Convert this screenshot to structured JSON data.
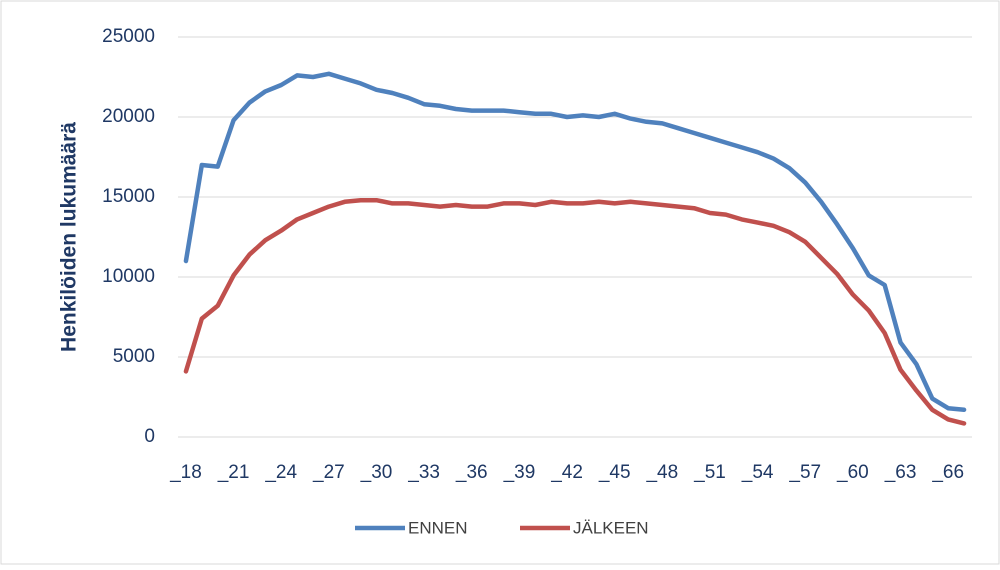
{
  "chart_data": {
    "type": "line",
    "y_label": "Henkilöiden lukumäärä",
    "categories": [
      "_18",
      null,
      null,
      "_21",
      null,
      null,
      "_24",
      null,
      null,
      "_27",
      null,
      null,
      "_30",
      null,
      null,
      "_33",
      null,
      null,
      "_36",
      null,
      null,
      "_39",
      null,
      null,
      "_42",
      null,
      null,
      "_45",
      null,
      null,
      "_48",
      null,
      null,
      "_51",
      null,
      null,
      "_54",
      null,
      null,
      "_57",
      null,
      null,
      "_60",
      null,
      null,
      "_63",
      null,
      null,
      "_66",
      null
    ],
    "series": [
      {
        "name": "ENNEN",
        "color": "#4f81bd",
        "values": [
          11000,
          17000,
          16900,
          19800,
          20900,
          21600,
          22000,
          22600,
          22500,
          22700,
          22400,
          22100,
          21700,
          21500,
          21200,
          20800,
          20700,
          20500,
          20400,
          20400,
          20400,
          20300,
          20200,
          20200,
          20000,
          20100,
          20000,
          20200,
          19900,
          19700,
          19600,
          19300,
          19000,
          18700,
          18400,
          18100,
          17800,
          17400,
          16800,
          15900,
          14700,
          13300,
          11800,
          10100,
          9500,
          5900,
          4550,
          2400,
          1800,
          1700
        ]
      },
      {
        "name": "JÄLKEEN",
        "color": "#c0504d",
        "values": [
          4100,
          7400,
          8200,
          10100,
          11400,
          12300,
          12900,
          13600,
          14000,
          14400,
          14700,
          14800,
          14800,
          14600,
          14600,
          14500,
          14400,
          14500,
          14400,
          14400,
          14600,
          14600,
          14500,
          14700,
          14600,
          14600,
          14700,
          14600,
          14700,
          14600,
          14500,
          14400,
          14300,
          14000,
          13900,
          13600,
          13400,
          13200,
          12800,
          12200,
          11200,
          10200,
          8900,
          7900,
          6500,
          4200,
          2900,
          1700,
          1100,
          850
        ]
      }
    ],
    "ylim": [
      0,
      25000
    ],
    "yticks": [
      0,
      5000,
      10000,
      15000,
      20000,
      25000
    ],
    "grid": true,
    "legend": "bottom"
  }
}
